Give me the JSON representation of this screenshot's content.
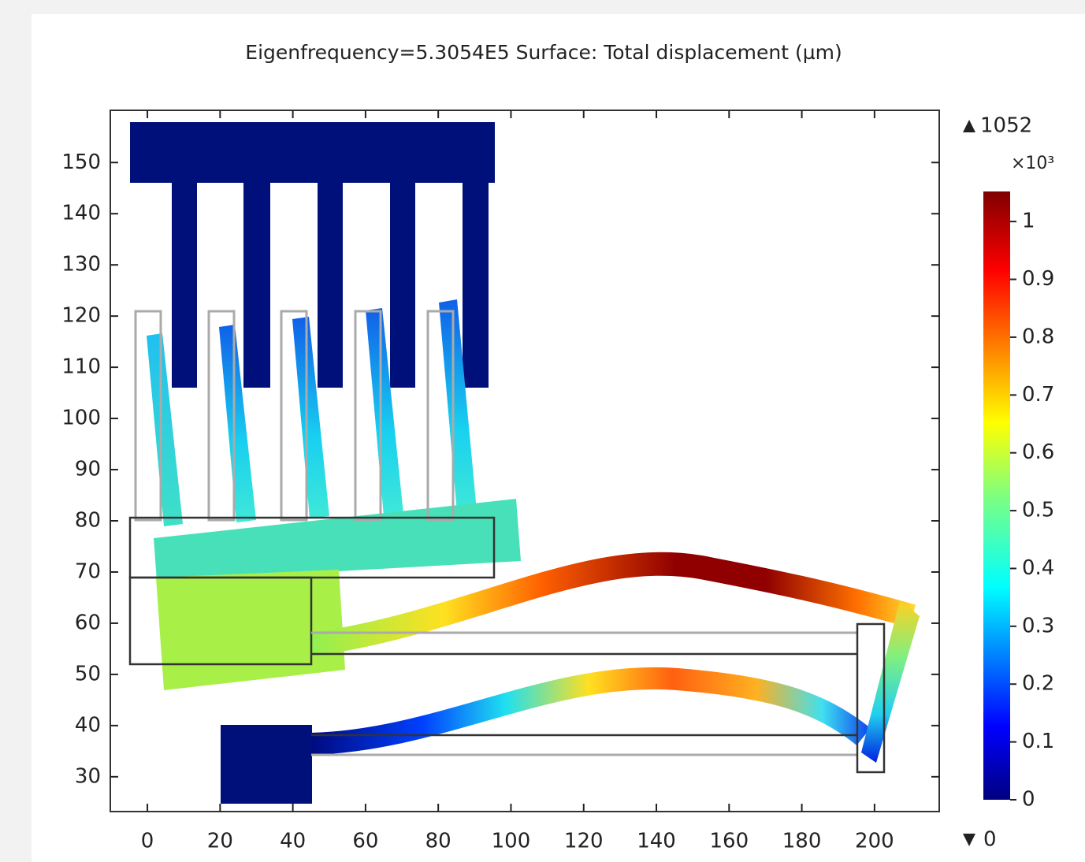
{
  "chart_data": {
    "type": "surface",
    "title": "Eigenfrequency=5.3054E5   Surface: Total displacement (µm)",
    "xlim": [
      -10.2,
      217.8
    ],
    "ylim": [
      23.2,
      160.2
    ],
    "xticks": [
      0,
      20,
      40,
      60,
      80,
      100,
      120,
      140,
      160,
      180,
      200
    ],
    "yticks": [
      30,
      40,
      50,
      60,
      70,
      80,
      90,
      100,
      110,
      120,
      130,
      140,
      150
    ],
    "colorbar": {
      "max": 1052,
      "min": 0,
      "multiplier": "×10³",
      "clim": [
        0,
        1.052
      ],
      "ticks": [
        0,
        0.1,
        0.2,
        0.3,
        0.4,
        0.5,
        0.6,
        0.7,
        0.8,
        0.9,
        1
      ]
    }
  }
}
